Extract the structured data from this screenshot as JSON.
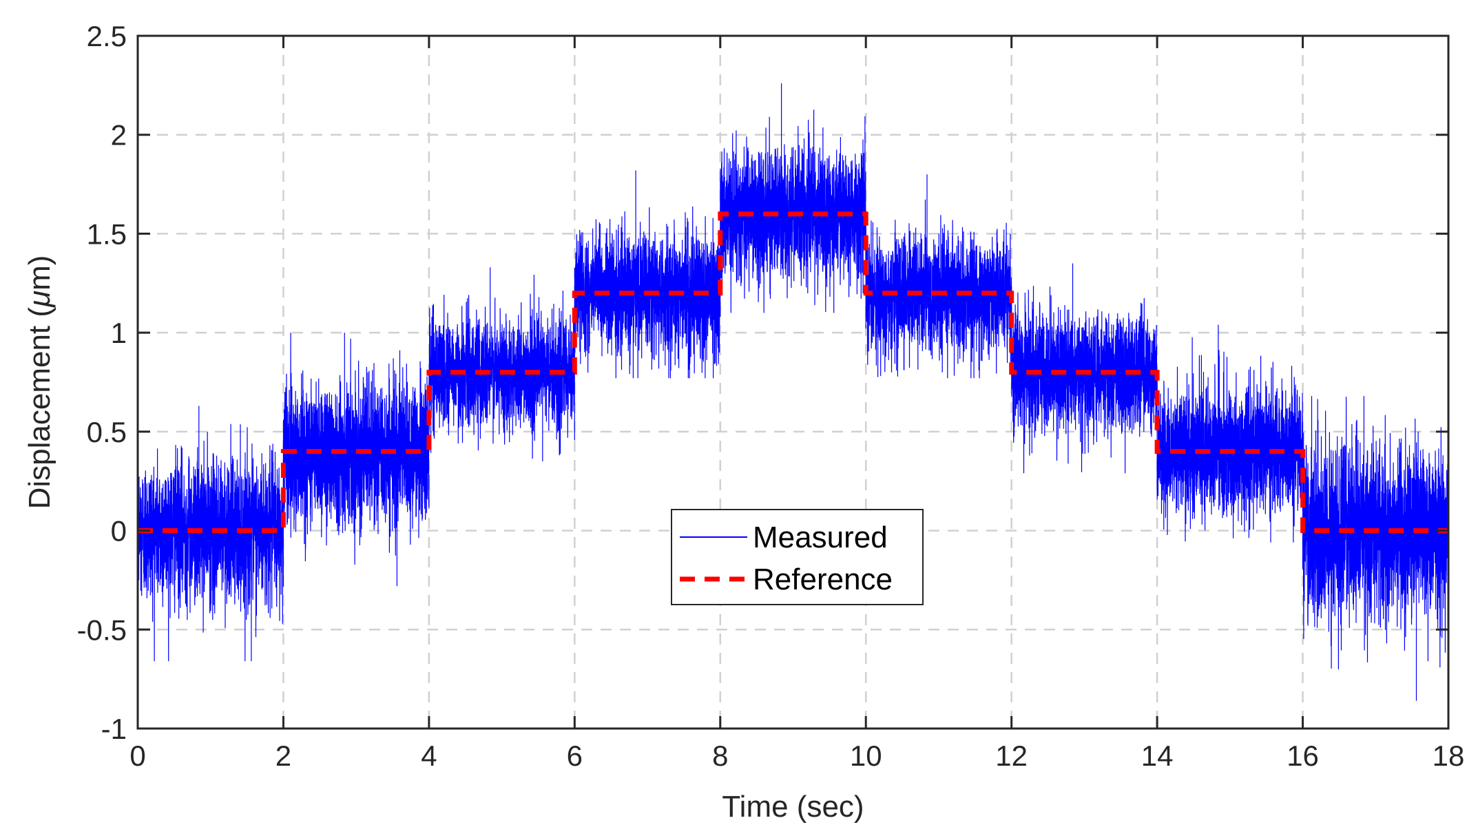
{
  "chart_data": {
    "type": "line",
    "title": "",
    "xlabel": "Time (sec)",
    "ylabel_prefix": "Displacement (",
    "ylabel_symbol": "μ",
    "ylabel_suffix": "m)",
    "xlim": [
      0,
      18
    ],
    "ylim": [
      -1,
      2.5
    ],
    "xticks": [
      0,
      2,
      4,
      6,
      8,
      10,
      12,
      14,
      16,
      18
    ],
    "xtick_labels": [
      "0",
      "2",
      "4",
      "6",
      "8",
      "10",
      "12",
      "14",
      "16",
      "18"
    ],
    "yticks": [
      -1,
      -0.5,
      0,
      0.5,
      1,
      1.5,
      2,
      2.5
    ],
    "ytick_labels": [
      "-1",
      "-0.5",
      "0",
      "0.5",
      "1",
      "1.5",
      "2",
      "2.5"
    ],
    "grid": true,
    "legend_position": "center",
    "series": [
      {
        "name": "Measured",
        "style": "solid",
        "color": "#0000ff",
        "description_levels": [
          {
            "x_start": 0,
            "x_end": 2,
            "mean": 0.0,
            "min": -0.66,
            "max": 0.63
          },
          {
            "x_start": 2,
            "x_end": 4,
            "mean": 0.4,
            "min": -0.28,
            "max": 1.0
          },
          {
            "x_start": 4,
            "x_end": 6,
            "mean": 0.8,
            "min": 0.35,
            "max": 1.33
          },
          {
            "x_start": 6,
            "x_end": 8,
            "mean": 1.2,
            "min": 0.77,
            "max": 1.82
          },
          {
            "x_start": 8,
            "x_end": 10,
            "mean": 1.6,
            "min": 1.1,
            "max": 2.26
          },
          {
            "x_start": 10,
            "x_end": 12,
            "mean": 1.2,
            "min": 0.77,
            "max": 1.8
          },
          {
            "x_start": 12,
            "x_end": 14,
            "mean": 0.8,
            "min": 0.29,
            "max": 1.35
          },
          {
            "x_start": 14,
            "x_end": 16,
            "mean": 0.4,
            "min": -0.06,
            "max": 1.04
          },
          {
            "x_start": 16,
            "x_end": 18,
            "mean": 0.0,
            "min": -0.86,
            "max": 0.68
          }
        ]
      },
      {
        "name": "Reference",
        "style": "dashed",
        "color": "#ff0000",
        "x": [
          0,
          2,
          2,
          4,
          4,
          6,
          6,
          8,
          8,
          10,
          10,
          12,
          12,
          14,
          14,
          16,
          16,
          18
        ],
        "y": [
          0,
          0,
          0.4,
          0.4,
          0.8,
          0.8,
          1.2,
          1.2,
          1.6,
          1.6,
          1.2,
          1.2,
          0.8,
          0.8,
          0.4,
          0.4,
          0,
          0
        ]
      }
    ],
    "legend": [
      "Measured",
      "Reference"
    ]
  }
}
